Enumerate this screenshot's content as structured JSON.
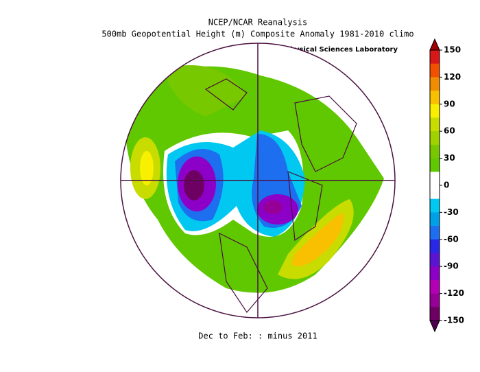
{
  "title": [
    "NCEP/NCAR Reanalysis",
    "500mb Geopotential Height (m) Composite Anomaly 1981-2010 climo"
  ],
  "credit": "NOAA Physical Sciences Laboratory",
  "caption": "Dec to Feb: :  minus 2011",
  "colorbar": {
    "range": [
      -150,
      150
    ],
    "ticks": [
      150,
      120,
      90,
      60,
      30,
      0,
      -30,
      -60,
      -90,
      -120,
      -150
    ],
    "colors": [
      "#d81818",
      "#f05000",
      "#f08c00",
      "#f8c000",
      "#f8f000",
      "#c8dc00",
      "#a0d200",
      "#78c800",
      "#60c800",
      "#ffffff",
      "#ffffff",
      "#00c8f0",
      "#00a0e6",
      "#1e6ef0",
      "#2828e6",
      "#5a14d2",
      "#8c00c8",
      "#b400b4",
      "#960096",
      "#6e0064"
    ],
    "over_color": "#a00000",
    "under_color": "#500050"
  }
}
